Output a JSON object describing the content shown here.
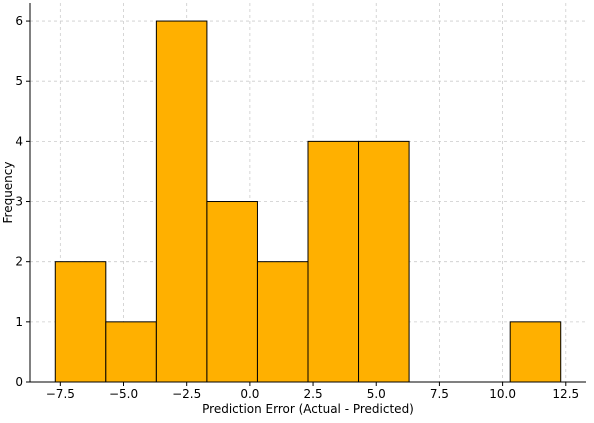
{
  "chart_data": {
    "type": "bar",
    "title": "",
    "xlabel": "Prediction Error (Actual - Predicted)",
    "ylabel": "Frequency",
    "bins": [
      {
        "x0": -7.7,
        "x1": -5.7,
        "count": 2
      },
      {
        "x0": -5.7,
        "x1": -3.7,
        "count": 1
      },
      {
        "x0": -3.7,
        "x1": -1.7,
        "count": 6
      },
      {
        "x0": -1.7,
        "x1": 0.3,
        "count": 3
      },
      {
        "x0": 0.3,
        "x1": 2.3,
        "count": 2
      },
      {
        "x0": 2.3,
        "x1": 4.3,
        "count": 4
      },
      {
        "x0": 4.3,
        "x1": 6.3,
        "count": 4
      },
      {
        "x0": 6.3,
        "x1": 8.3,
        "count": 0
      },
      {
        "x0": 8.3,
        "x1": 10.3,
        "count": 0
      },
      {
        "x0": 10.3,
        "x1": 12.3,
        "count": 1
      }
    ],
    "xlim": [
      -8.7,
      13.3
    ],
    "ylim": [
      0,
      6.3
    ],
    "xticks": [
      -7.5,
      -5.0,
      -2.5,
      0.0,
      2.5,
      5.0,
      7.5,
      10.0,
      12.5
    ],
    "xtick_labels": [
      "−7.5",
      "−5.0",
      "−2.5",
      "0.0",
      "2.5",
      "5.0",
      "7.5",
      "10.0",
      "12.5"
    ],
    "yticks": [
      0,
      1,
      2,
      3,
      4,
      5,
      6
    ],
    "ytick_labels": [
      "0",
      "1",
      "2",
      "3",
      "4",
      "5",
      "6"
    ],
    "grid": true,
    "colors": {
      "bar_fill": "#FFB000",
      "bar_edge": "#000000",
      "grid": "#cccccc"
    }
  }
}
